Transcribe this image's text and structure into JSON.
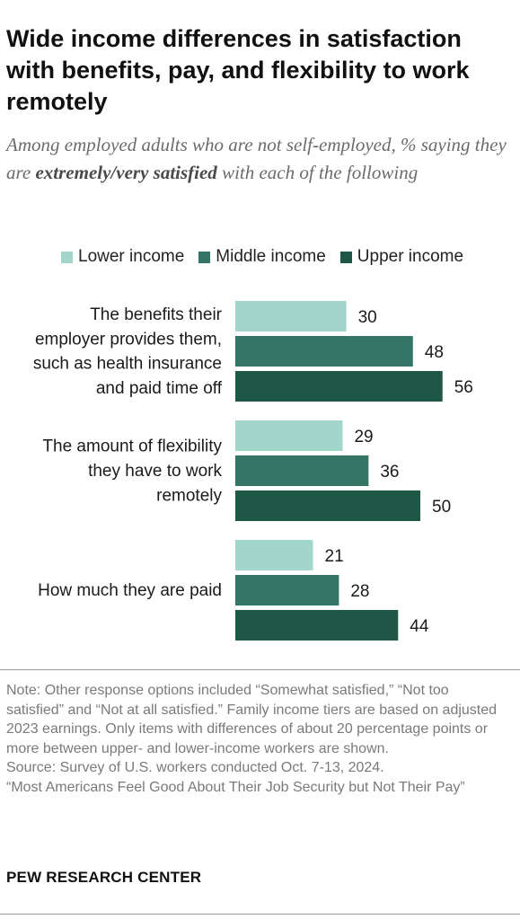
{
  "title": "Wide income differences in satisfaction with benefits, pay, and flexibility to work remotely",
  "subtitle": {
    "before": "Among employed adults who are not self-employed, % saying they are ",
    "emphasis": "extremely/very satisfied",
    "after": " with each of the following"
  },
  "chart_data": {
    "type": "bar",
    "orientation": "horizontal",
    "categories": [
      [
        "The benefits their",
        "employer provides them,",
        "such as health insurance",
        "and paid time off"
      ],
      [
        "The amount of flexibility",
        "they have to work",
        "remotely"
      ],
      [
        "How much they are paid"
      ]
    ],
    "series": [
      {
        "name": "Lower income",
        "color": "#a3d6cb",
        "values": [
          30,
          29,
          21
        ]
      },
      {
        "name": "Middle income",
        "color": "#327566",
        "values": [
          48,
          36,
          28
        ]
      },
      {
        "name": "Upper income",
        "color": "#1f5747",
        "values": [
          56,
          50,
          44
        ]
      }
    ],
    "xlim": [
      0,
      100
    ],
    "grid": false,
    "legend_position": "top"
  },
  "notes": {
    "note": "Note: Other response options included “Somewhat satisfied,” “Not too satisfied” and “Not at all satisfied.” Family income tiers are based on adjusted 2023 earnings. Only items with differences of about 20 percentage points or more between upper- and lower-income workers are shown.",
    "source": "Source: Survey of U.S. workers conducted Oct. 7-13, 2024.",
    "report": "“Most Americans Feel Good About Their Job Security but Not Their Pay”"
  },
  "brand": "PEW RESEARCH CENTER"
}
